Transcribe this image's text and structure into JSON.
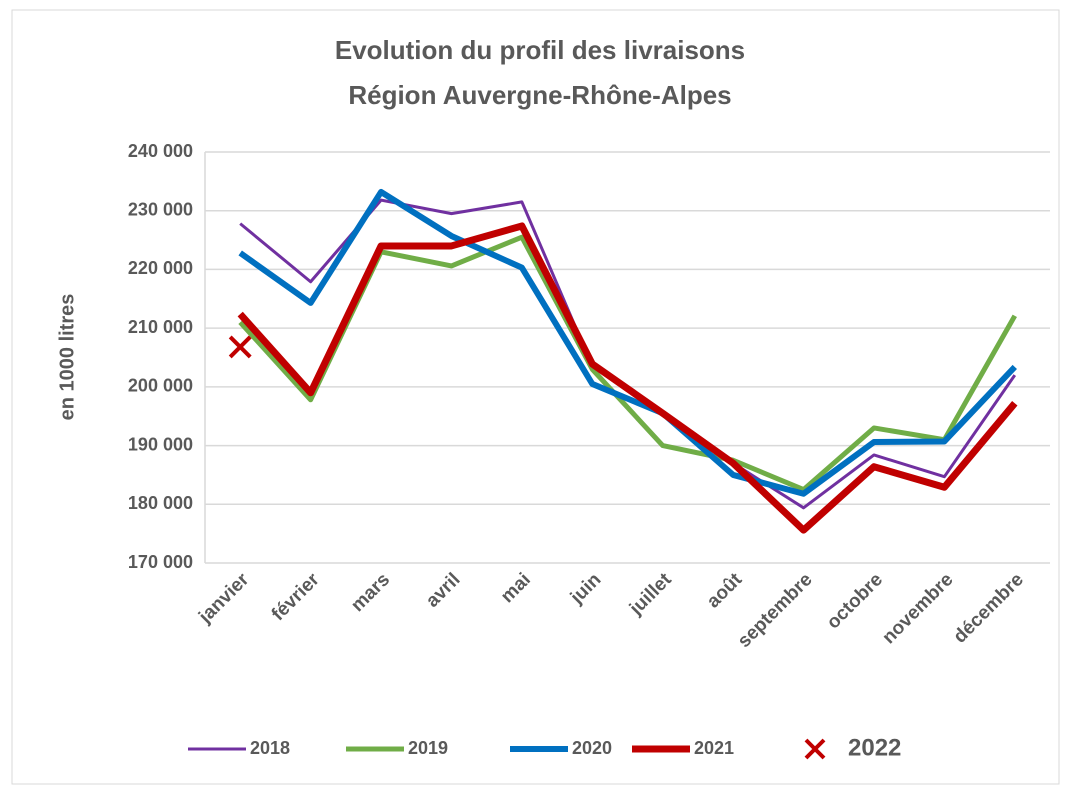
{
  "chart_data": {
    "type": "line",
    "title": "Evolution du profil des livraisons",
    "subtitle": "Région Auvergne-Rhône-Alpes",
    "y_label": "en 1000 litres",
    "categories": [
      "janvier",
      "février",
      "mars",
      "avril",
      "mai",
      "juin",
      "juillet",
      "août",
      "septembre",
      "octobre",
      "novembre",
      "décembre"
    ],
    "series": [
      {
        "name": "2018",
        "color": "#7030a0",
        "values": [
          227800,
          217900,
          231800,
          229500,
          231500,
          203500,
          195500,
          187000,
          179400,
          188400,
          184700,
          202000
        ]
      },
      {
        "name": "2019",
        "color": "#70ad47",
        "values": [
          211000,
          197800,
          223000,
          220600,
          225500,
          203000,
          190000,
          187500,
          182500,
          193000,
          191000,
          212100
        ]
      },
      {
        "name": "2020",
        "color": "#0070c0",
        "values": [
          222800,
          214300,
          233200,
          225700,
          220300,
          200500,
          195500,
          185000,
          181800,
          190600,
          190700,
          203400
        ]
      },
      {
        "name": "2021",
        "color": "#c00000",
        "values": [
          212400,
          199000,
          224000,
          224000,
          227400,
          203900,
          195500,
          187000,
          175600,
          186400,
          182900,
          197200
        ]
      },
      {
        "name": "2022",
        "color": "#c00000",
        "marker": "x",
        "values": [
          206800,
          null,
          null,
          null,
          null,
          null,
          null,
          null,
          null,
          null,
          null,
          null
        ]
      }
    ],
    "ylim": [
      170000,
      240000
    ],
    "yticks": [
      {
        "value": 170000,
        "label": "170 000"
      },
      {
        "value": 180000,
        "label": "180 000"
      },
      {
        "value": 190000,
        "label": "190 000"
      },
      {
        "value": 200000,
        "label": "200 000"
      },
      {
        "value": 210000,
        "label": "210 000"
      },
      {
        "value": 220000,
        "label": "220 000"
      },
      {
        "value": 230000,
        "label": "230 000"
      },
      {
        "value": 240000,
        "label": "240 000"
      }
    ],
    "grid": true
  }
}
